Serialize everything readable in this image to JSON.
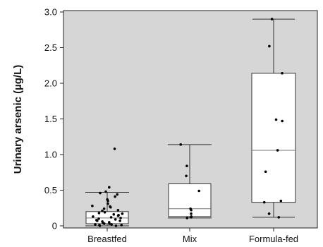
{
  "chart_data": {
    "type": "boxplot",
    "title": "",
    "xlabel": "",
    "ylabel": "Urinary arsenic (µg/L)",
    "ylim": [
      0,
      3.0
    ],
    "y_ticks": [
      "0",
      "0.5",
      "1.0",
      "1.5",
      "2.0",
      "2.5",
      "3.0"
    ],
    "y_tick_values": [
      0,
      0.5,
      1.0,
      1.5,
      2.0,
      2.5,
      3.0
    ],
    "grid": false,
    "plot_background": "#d6d6d6",
    "box_fill": "#ffffff",
    "categories": [
      "Breastfed",
      "Mix",
      "Formula-fed"
    ],
    "groups": [
      {
        "name": "Breastfed",
        "whisker_low": 0.0,
        "q1": 0.03,
        "median": 0.11,
        "q3": 0.2,
        "whisker_high": 0.47,
        "points": [
          1.08,
          0.54,
          0.48,
          0.46,
          0.44,
          0.41,
          0.37,
          0.35,
          0.31,
          0.28,
          0.27,
          0.26,
          0.24,
          0.22,
          0.21,
          0.19,
          0.18,
          0.17,
          0.16,
          0.15,
          0.14,
          0.13,
          0.12,
          0.11,
          0.1,
          0.09,
          0.08,
          0.07,
          0.07,
          0.06,
          0.05,
          0.04,
          0.03,
          0.03,
          0.02,
          0.02,
          0.01,
          0.01,
          0.0,
          0.0
        ]
      },
      {
        "name": "Mix",
        "whisker_low": 0.11,
        "q1": 0.13,
        "median": 0.24,
        "q3": 0.59,
        "whisker_high": 1.14,
        "points": [
          1.14,
          0.84,
          0.7,
          0.49,
          0.24,
          0.22,
          0.17,
          0.13,
          0.12,
          0.11
        ]
      },
      {
        "name": "Formula-fed",
        "whisker_low": 0.12,
        "q1": 0.33,
        "median": 1.06,
        "q3": 2.14,
        "whisker_high": 2.9,
        "points": [
          2.9,
          2.52,
          2.14,
          1.49,
          1.47,
          1.06,
          0.76,
          0.35,
          0.33,
          0.17,
          0.12
        ]
      }
    ]
  }
}
